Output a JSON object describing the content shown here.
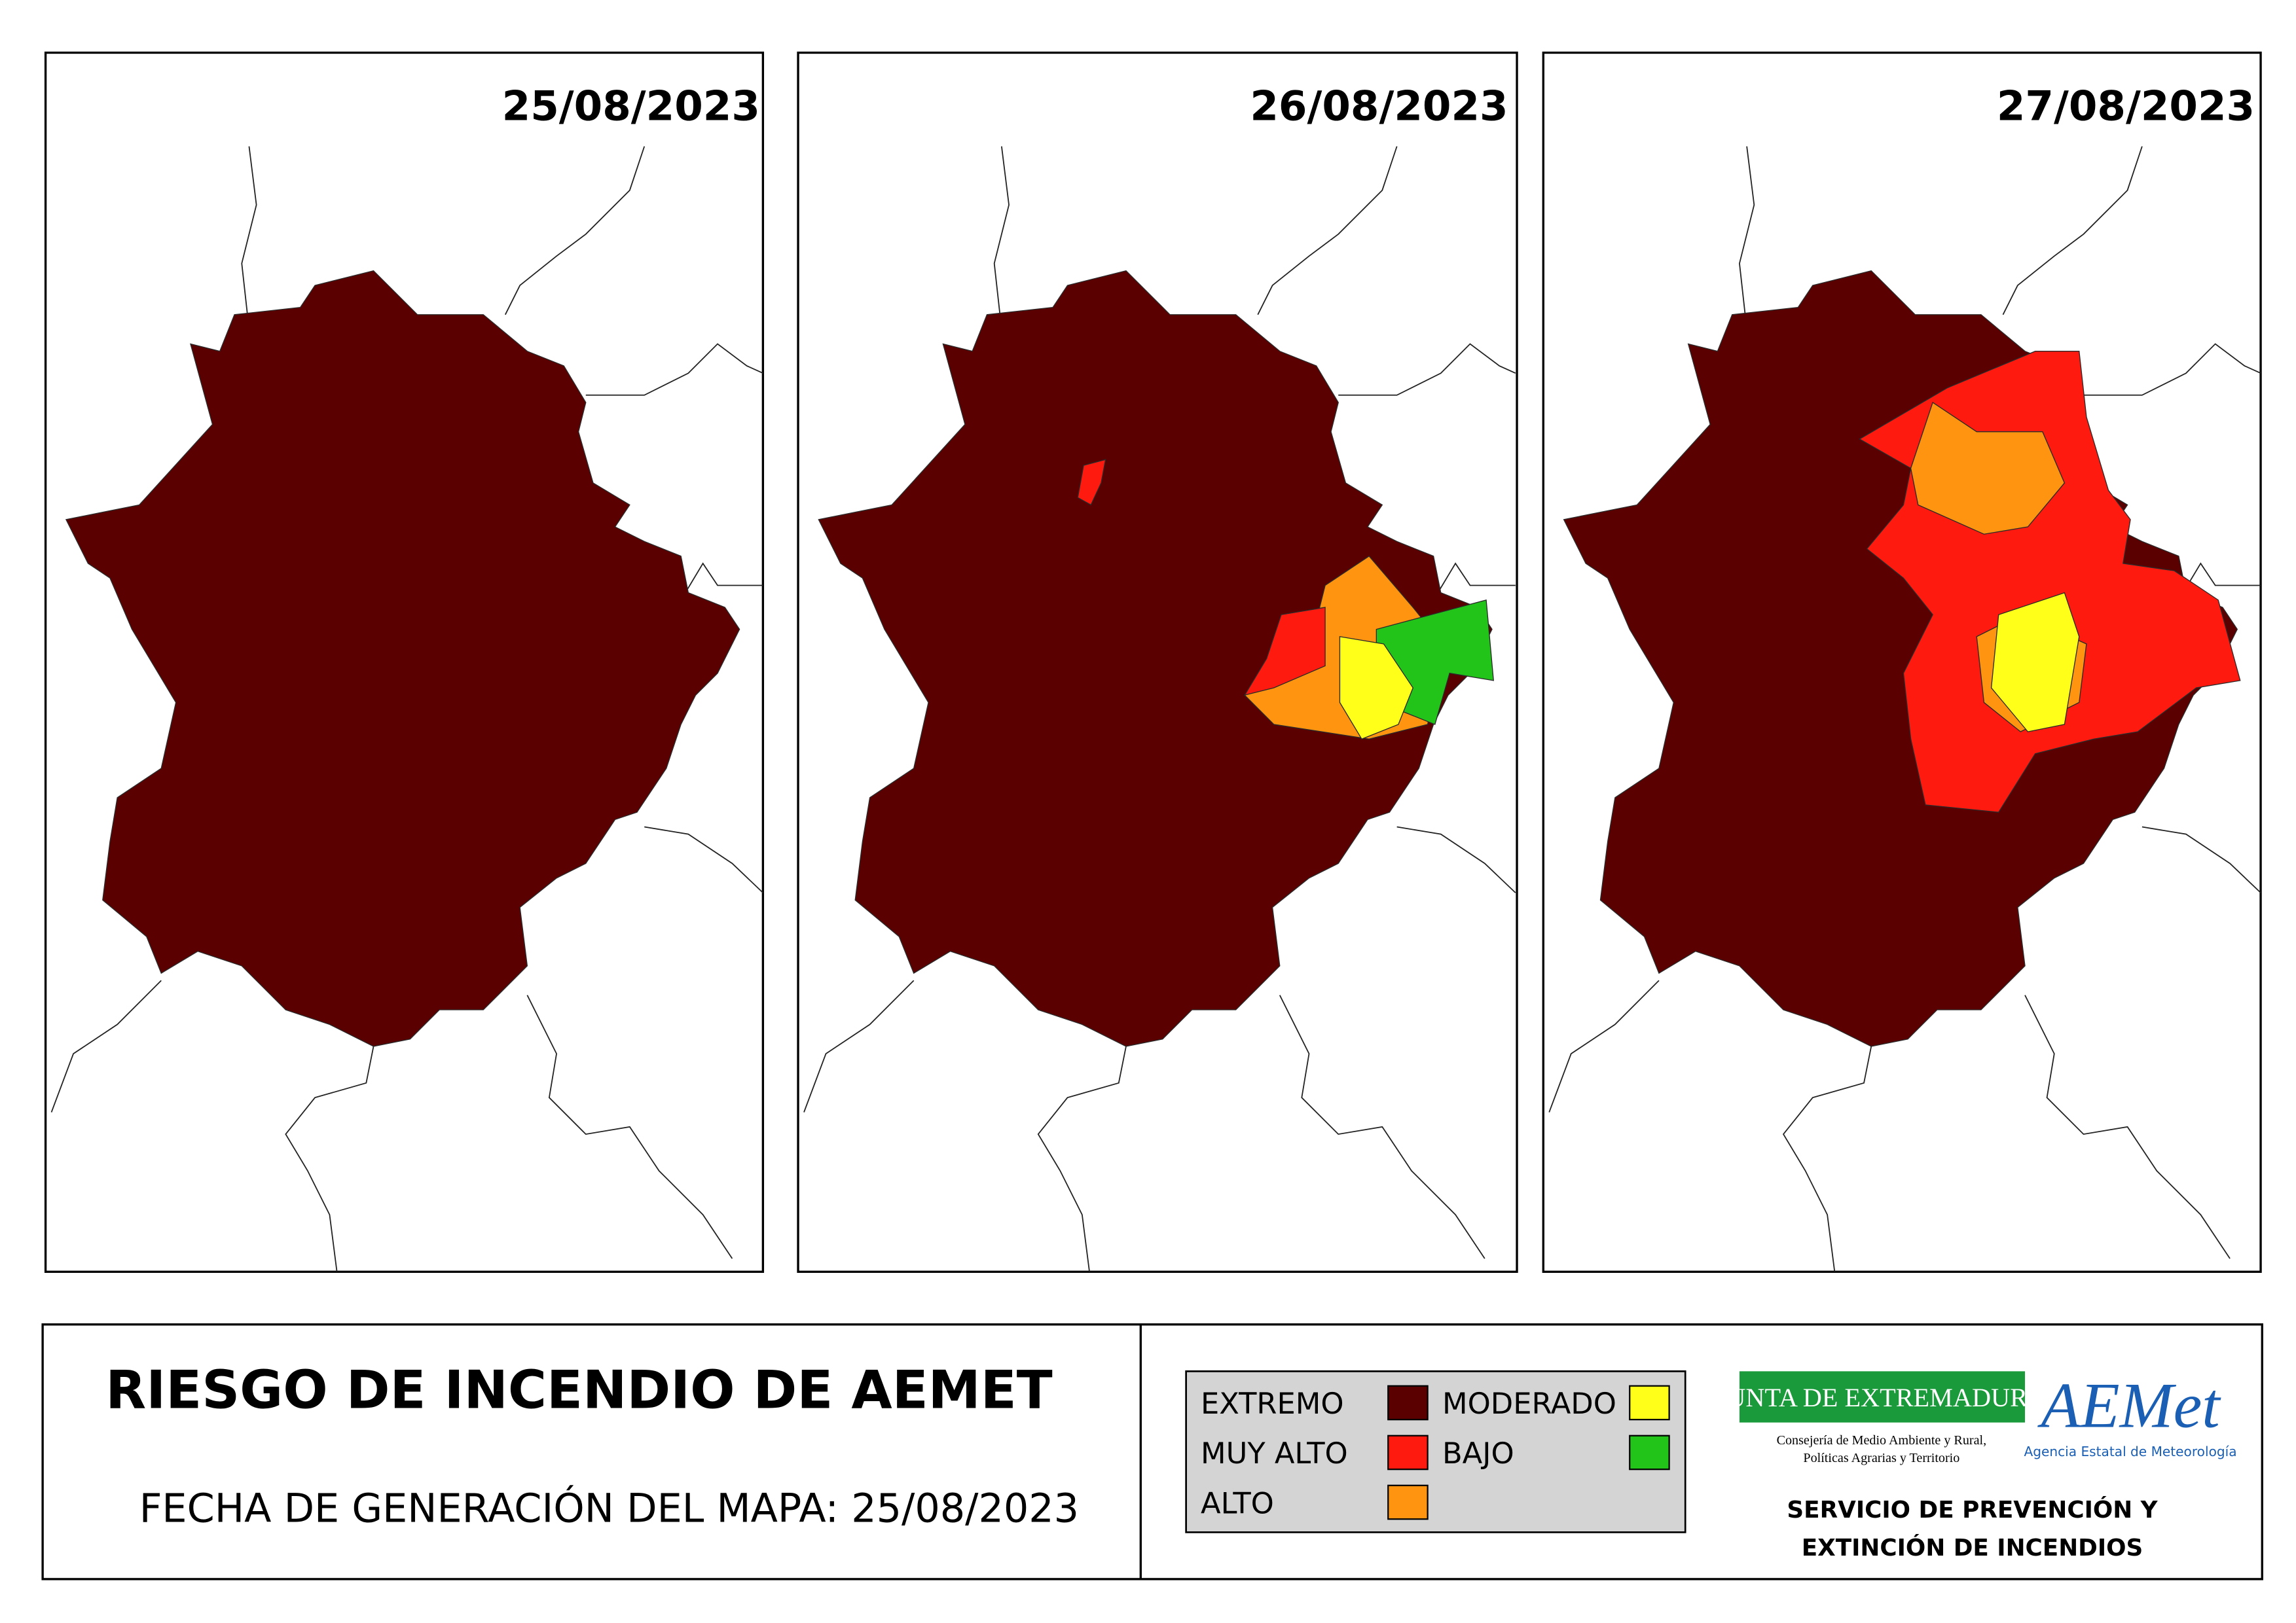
{
  "panels": [
    {
      "date": "25/08/2023"
    },
    {
      "date": "26/08/2023"
    },
    {
      "date": "27/08/2023"
    }
  ],
  "title": "RIESGO DE INCENDIO DE AEMET",
  "subtitle": "FECHA DE GENERACIÓN DEL MAPA: 25/08/2023",
  "legend": [
    {
      "label": "EXTREMO",
      "color": "#5a0000"
    },
    {
      "label": "MUY ALTO",
      "color": "#ff1a0f"
    },
    {
      "label": "ALTO",
      "color": "#ff9410"
    },
    {
      "label": "MODERADO",
      "color": "#ffff1a"
    },
    {
      "label": "BAJO",
      "color": "#22c41a"
    }
  ],
  "logos": {
    "junta": "JUNTA DE EXTREMADURA",
    "junta_sub": [
      "Consejería de Medio Ambiente y Rural,",
      "Políticas Agrarias y Territorio"
    ],
    "aemet": "AEMet",
    "aemet_sub": "Agencia Estatal de Meteorología"
  },
  "service": [
    "SERVICIO DE PREVENCIÓN Y",
    "EXTINCIÓN DE INCENDIOS"
  ]
}
